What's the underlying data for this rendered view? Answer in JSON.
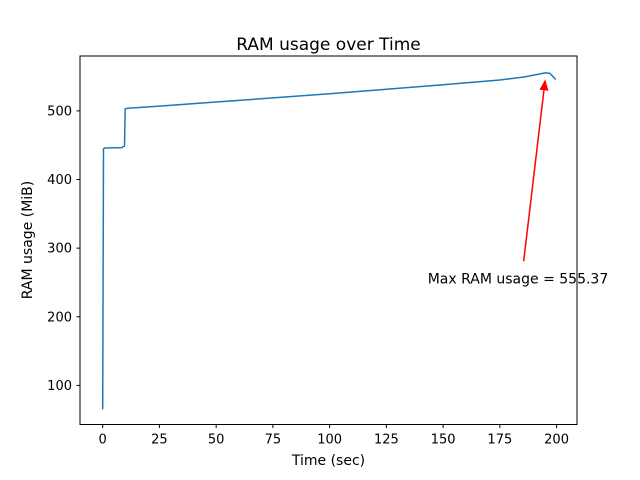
{
  "window": {
    "background": "#ffffff"
  },
  "chart_data": {
    "type": "line",
    "title": "RAM usage over Time",
    "xlabel": "Time (sec)",
    "ylabel": "RAM usage (MiB)",
    "xlim": [
      -10,
      209
    ],
    "ylim": [
      43,
      580
    ],
    "xticks": [
      0,
      25,
      50,
      75,
      100,
      125,
      150,
      175,
      200
    ],
    "yticks": [
      100,
      200,
      300,
      400,
      500
    ],
    "grid": false,
    "legend": null,
    "axes_color": "#000000",
    "series": [
      {
        "name": "ram-usage",
        "color": "#1f77b4",
        "points": [
          [
            0,
            66
          ],
          [
            0.35,
            445
          ],
          [
            0.8,
            446
          ],
          [
            8.6,
            446.5
          ],
          [
            9.0,
            448
          ],
          [
            9.6,
            448.5
          ],
          [
            9.9,
            503
          ],
          [
            11,
            504
          ],
          [
            25,
            507
          ],
          [
            50,
            513
          ],
          [
            75,
            519
          ],
          [
            100,
            525
          ],
          [
            125,
            531.5
          ],
          [
            150,
            538
          ],
          [
            175,
            545
          ],
          [
            186,
            549.5
          ],
          [
            195,
            555.37
          ],
          [
            197,
            554.8
          ],
          [
            199.5,
            546.5
          ]
        ]
      }
    ],
    "annotation": {
      "label": "Max RAM usage = 555.37",
      "color": "#ff0000",
      "arrow_tip": [
        195,
        546
      ],
      "arrow_tail": [
        185.5,
        281
      ],
      "text_center": [
        183,
        256
      ]
    }
  }
}
